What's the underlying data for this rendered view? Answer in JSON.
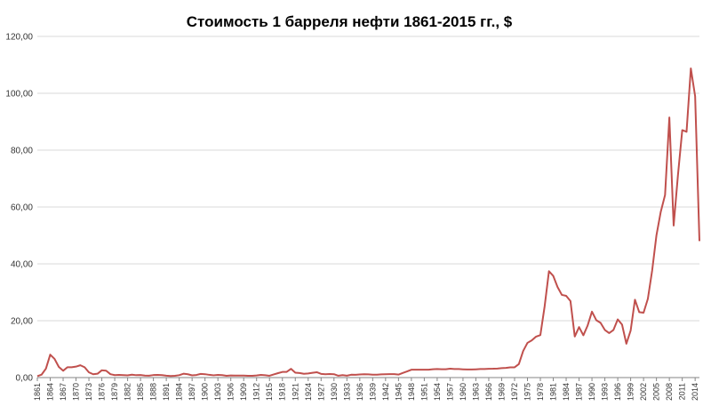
{
  "chart_data": {
    "type": "line",
    "title": "Стоимость 1 барреля нефти 1861-2015 гг., $",
    "xlabel": "",
    "ylabel": "",
    "ylim": [
      0,
      120
    ],
    "y_ticks": [
      "0,00",
      "20,00",
      "40,00",
      "60,00",
      "80,00",
      "100,00",
      "120,00"
    ],
    "x_ticks": [
      "1861",
      "1864",
      "1867",
      "1870",
      "1873",
      "1876",
      "1879",
      "1882",
      "1885",
      "1888",
      "1891",
      "1894",
      "1897",
      "1900",
      "1903",
      "1906",
      "1909",
      "1912",
      "1915",
      "1918",
      "1921",
      "1924",
      "1927",
      "1930",
      "1933",
      "1936",
      "1939",
      "1942",
      "1945",
      "1948",
      "1951",
      "1954",
      "1957",
      "1960",
      "1963",
      "1966",
      "1969",
      "1972",
      "1975",
      "1978",
      "1981",
      "1984",
      "1987",
      "1990",
      "1993",
      "1996",
      "1999",
      "2002",
      "2005",
      "2008",
      "2011",
      "2014"
    ],
    "grid": true,
    "legend": "none",
    "series": [
      {
        "color": "#c0504d",
        "x": [
          1861,
          1862,
          1863,
          1864,
          1865,
          1866,
          1867,
          1868,
          1869,
          1870,
          1871,
          1872,
          1873,
          1874,
          1875,
          1876,
          1877,
          1878,
          1879,
          1880,
          1881,
          1882,
          1883,
          1884,
          1885,
          1886,
          1887,
          1888,
          1889,
          1890,
          1891,
          1892,
          1893,
          1894,
          1895,
          1896,
          1897,
          1898,
          1899,
          1900,
          1901,
          1902,
          1903,
          1904,
          1905,
          1906,
          1907,
          1908,
          1909,
          1910,
          1911,
          1912,
          1913,
          1914,
          1915,
          1916,
          1917,
          1918,
          1919,
          1920,
          1921,
          1922,
          1923,
          1924,
          1925,
          1926,
          1927,
          1928,
          1929,
          1930,
          1931,
          1932,
          1933,
          1934,
          1935,
          1936,
          1937,
          1938,
          1939,
          1940,
          1941,
          1942,
          1943,
          1944,
          1945,
          1946,
          1947,
          1948,
          1949,
          1950,
          1951,
          1952,
          1953,
          1954,
          1955,
          1956,
          1957,
          1958,
          1959,
          1960,
          1961,
          1962,
          1963,
          1964,
          1965,
          1966,
          1967,
          1968,
          1969,
          1970,
          1971,
          1972,
          1973,
          1974,
          1975,
          1976,
          1977,
          1978,
          1979,
          1980,
          1981,
          1982,
          1983,
          1984,
          1985,
          1986,
          1987,
          1988,
          1989,
          1990,
          1991,
          1992,
          1993,
          1994,
          1995,
          1996,
          1997,
          1998,
          1999,
          2000,
          2001,
          2002,
          2003,
          2004,
          2005,
          2006,
          2007,
          2008,
          2009,
          2010,
          2011,
          2012,
          2013,
          2014,
          2015
        ],
        "values": [
          0.49,
          1.05,
          3.15,
          8.06,
          6.59,
          3.74,
          2.41,
          3.63,
          3.64,
          3.86,
          4.34,
          3.64,
          1.83,
          1.17,
          1.35,
          2.56,
          2.42,
          1.19,
          0.86,
          0.95,
          0.86,
          0.78,
          1.0,
          0.84,
          0.88,
          0.71,
          0.67,
          0.88,
          0.94,
          0.87,
          0.67,
          0.56,
          0.64,
          0.84,
          1.36,
          1.18,
          0.79,
          0.91,
          1.29,
          1.19,
          0.96,
          0.8,
          0.94,
          0.86,
          0.62,
          0.73,
          0.72,
          0.72,
          0.7,
          0.61,
          0.61,
          0.74,
          0.95,
          0.81,
          0.64,
          1.1,
          1.56,
          1.98,
          2.01,
          3.07,
          1.73,
          1.61,
          1.34,
          1.43,
          1.68,
          1.88,
          1.3,
          1.17,
          1.27,
          1.19,
          0.65,
          0.87,
          0.67,
          1.0,
          0.97,
          1.09,
          1.18,
          1.13,
          1.02,
          1.02,
          1.14,
          1.19,
          1.2,
          1.21,
          1.05,
          1.63,
          2.16,
          2.77,
          2.77,
          2.77,
          2.77,
          2.77,
          2.92,
          2.99,
          2.93,
          2.94,
          3.14,
          3.0,
          3.0,
          2.91,
          2.85,
          2.85,
          2.91,
          3.0,
          3.01,
          3.1,
          3.12,
          3.18,
          3.32,
          3.39,
          3.6,
          3.6,
          4.75,
          9.35,
          12.21,
          13.1,
          14.4,
          14.95,
          25.1,
          37.42,
          35.75,
          31.83,
          29.08,
          28.75,
          26.92,
          14.44,
          17.75,
          14.87,
          18.33,
          23.19,
          20.2,
          19.25,
          16.75,
          15.66,
          16.75,
          20.46,
          18.64,
          11.91,
          16.56,
          27.39,
          23.0,
          22.81,
          27.69,
          37.66,
          50.04,
          58.3,
          64.2,
          91.48,
          53.48,
          71.21,
          87.04,
          86.46,
          108.73,
          98.95,
          48.0
        ]
      }
    ]
  }
}
